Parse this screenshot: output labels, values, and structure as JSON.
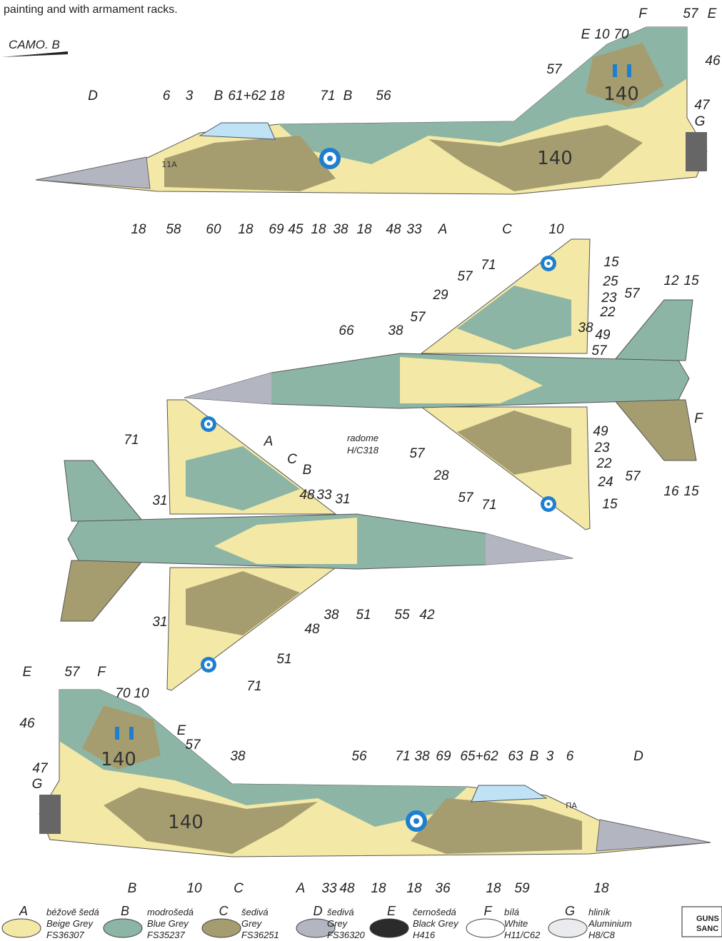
{
  "intro": "painting and with armament racks.",
  "camo_label": "CAMO. B",
  "views": [
    {
      "callouts": [
        "D",
        "6",
        "3",
        "B",
        "61+62",
        "18",
        "71",
        "B",
        "56",
        "F",
        "57",
        "E",
        "E",
        "10",
        "70",
        "46",
        "57",
        "47",
        "G",
        "18",
        "58",
        "60",
        "18",
        "69",
        "45",
        "18",
        "38",
        "18",
        "48",
        "33",
        "A",
        "C",
        "10"
      ],
      "markings": [
        "140",
        "140",
        "11A"
      ]
    },
    {
      "callouts": [
        "71",
        "15",
        "57",
        "25",
        "29",
        "23",
        "22",
        "57",
        "38",
        "66",
        "38",
        "49",
        "57",
        "12",
        "15",
        "57",
        "F",
        "radome",
        "H/C318",
        "49",
        "57",
        "23",
        "22",
        "28",
        "24",
        "57",
        "71",
        "15",
        "16",
        "15",
        "57"
      ],
      "markings": []
    },
    {
      "callouts": [
        "71",
        "A",
        "C",
        "B",
        "31",
        "48",
        "33",
        "31",
        "31",
        "38",
        "51",
        "55",
        "42",
        "48",
        "51",
        "71"
      ],
      "markings": []
    },
    {
      "callouts": [
        "E",
        "57",
        "F",
        "70",
        "10",
        "46",
        "E",
        "57",
        "47",
        "G",
        "38",
        "56",
        "71",
        "38",
        "69",
        "65+62",
        "63",
        "B",
        "3",
        "6",
        "D",
        "B",
        "10",
        "C",
        "A",
        "33",
        "48",
        "18",
        "18",
        "36",
        "18",
        "59",
        "18"
      ],
      "markings": [
        "140",
        "140",
        "ΠΑ"
      ]
    }
  ],
  "legend": [
    {
      "letter": "A",
      "name_cz": "béžově šedá",
      "name_en": "Beige Grey",
      "code": "FS36307",
      "color": "#f4e8a6"
    },
    {
      "letter": "B",
      "name_cz": "modrošedá",
      "name_en": "Blue Grey",
      "code": "FS35237",
      "color": "#8db5a5"
    },
    {
      "letter": "C",
      "name_cz": "šedivá",
      "name_en": "Grey",
      "code": "FS36251",
      "color": "#a59d6f"
    },
    {
      "letter": "D",
      "name_cz": "šedivá",
      "name_en": "Grey",
      "code": "FS36320",
      "color": "#b3b5c1"
    },
    {
      "letter": "E",
      "name_cz": "černošedá",
      "name_en": "Black Grey",
      "code": "H416",
      "color": "#2b2b2b"
    },
    {
      "letter": "F",
      "name_cz": "bílá",
      "name_en": "White",
      "code": "H11/C62",
      "color": "#ffffff"
    },
    {
      "letter": "G",
      "name_cz": "hliník",
      "name_en": "Aluminium",
      "code": "H8/C8",
      "color": "#e9ebef"
    }
  ],
  "logo": [
    "GUNS",
    "SANC"
  ]
}
